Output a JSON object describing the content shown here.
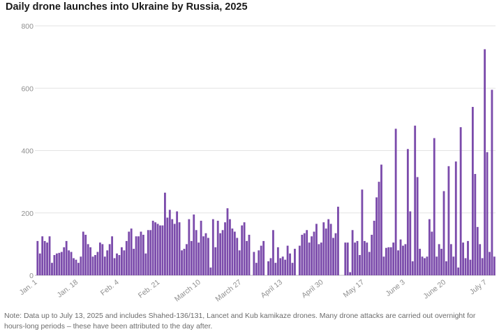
{
  "chart_data": {
    "type": "bar",
    "title": "Daily drone launches into Ukraine by Russia, 2025",
    "xlabel": "",
    "ylabel": "",
    "ylim": [
      0,
      800
    ],
    "yticks": [
      0,
      200,
      400,
      600,
      800
    ],
    "xticks": [
      {
        "label": "Jan. 1",
        "day": 1
      },
      {
        "label": "Jan. 18",
        "day": 18
      },
      {
        "label": "Feb. 4",
        "day": 35
      },
      {
        "label": "Feb. 21",
        "day": 52
      },
      {
        "label": "March 10",
        "day": 69
      },
      {
        "label": "March 27",
        "day": 86
      },
      {
        "label": "April 13",
        "day": 103
      },
      {
        "label": "April 30",
        "day": 120
      },
      {
        "label": "May 17",
        "day": 137
      },
      {
        "label": "June 3",
        "day": 154
      },
      {
        "label": "June 20",
        "day": 171
      },
      {
        "label": "July 7",
        "day": 188
      }
    ],
    "bar_color": "#7b4bab",
    "values": [
      110,
      70,
      125,
      110,
      105,
      125,
      40,
      65,
      70,
      72,
      75,
      90,
      110,
      80,
      75,
      55,
      50,
      40,
      60,
      140,
      130,
      100,
      90,
      60,
      65,
      75,
      105,
      100,
      60,
      80,
      100,
      125,
      55,
      70,
      65,
      90,
      80,
      110,
      140,
      150,
      85,
      125,
      125,
      140,
      130,
      70,
      145,
      145,
      175,
      170,
      165,
      160,
      160,
      265,
      185,
      210,
      180,
      165,
      205,
      170,
      80,
      85,
      100,
      180,
      110,
      195,
      145,
      105,
      175,
      125,
      135,
      120,
      25,
      180,
      90,
      175,
      135,
      145,
      170,
      215,
      180,
      150,
      140,
      120,
      80,
      160,
      170,
      110,
      130,
      0,
      75,
      40,
      80,
      95,
      110,
      0,
      45,
      55,
      145,
      40,
      90,
      55,
      60,
      50,
      95,
      70,
      40,
      85,
      0,
      95,
      130,
      135,
      145,
      105,
      125,
      140,
      165,
      100,
      105,
      170,
      150,
      180,
      165,
      120,
      135,
      220,
      0,
      0,
      105,
      105,
      10,
      145,
      105,
      110,
      65,
      275,
      110,
      105,
      75,
      130,
      175,
      250,
      300,
      355,
      60,
      88,
      90,
      90,
      105,
      470,
      80,
      115,
      95,
      100,
      405,
      205,
      45,
      480,
      315,
      85,
      60,
      55,
      60,
      180,
      140,
      440,
      60,
      100,
      85,
      270,
      45,
      350,
      100,
      60,
      365,
      25,
      475,
      105,
      55,
      110,
      50,
      540,
      325,
      155,
      100,
      55,
      725,
      395,
      75,
      595,
      60
    ]
  },
  "footer": {
    "note": "Note: Data up to July 13, 2025 and includes Shahed-136/131, Lancet and Kub kamikaze drones. Many drone attacks are carried out overnight for hours-long periods – these have been attributed to the day after."
  }
}
